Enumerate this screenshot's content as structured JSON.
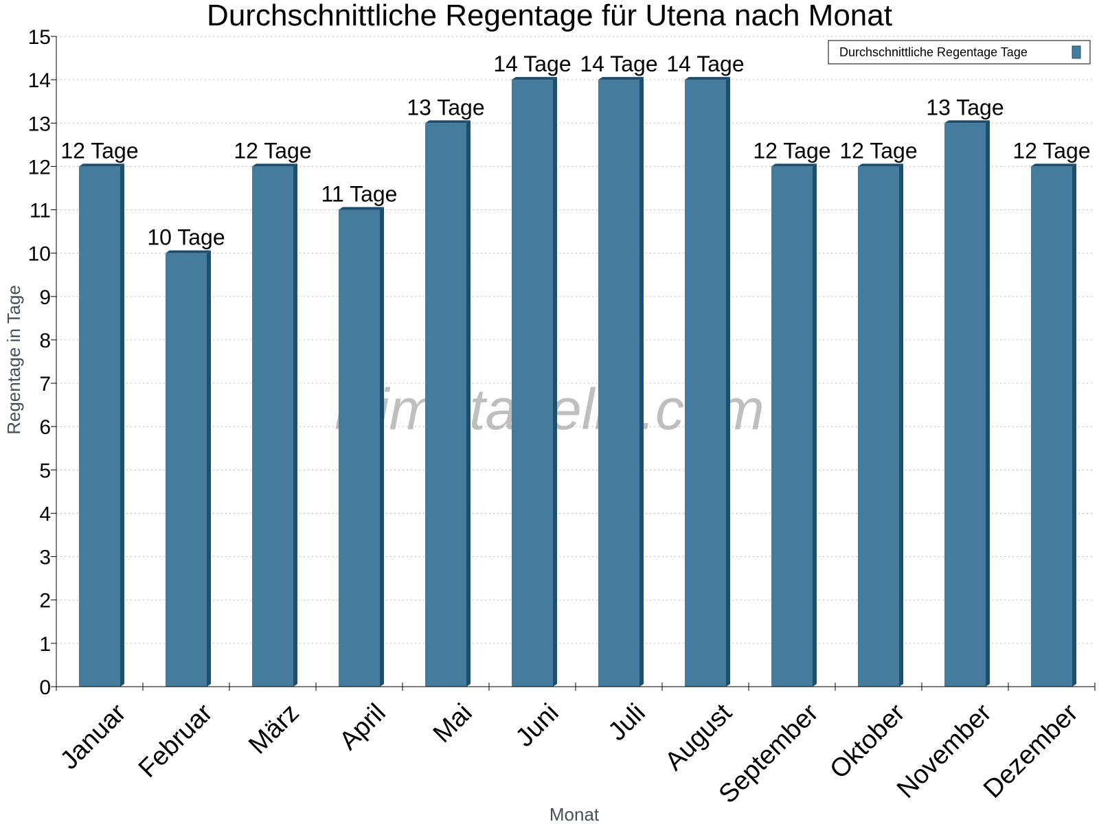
{
  "chart_data": {
    "type": "bar",
    "title": "Durchschnittliche Regentage für Utena nach Monat",
    "xlabel": "Monat",
    "ylabel": "Regentage in Tage",
    "ylim": [
      0,
      15
    ],
    "yticks": [
      0,
      1,
      2,
      3,
      4,
      5,
      6,
      7,
      8,
      9,
      10,
      11,
      12,
      13,
      14,
      15
    ],
    "grid": true,
    "legend_position": "top-right",
    "categories": [
      "Januar",
      "Februar",
      "März",
      "April",
      "Mai",
      "Juni",
      "Juli",
      "August",
      "September",
      "Oktober",
      "November",
      "Dezember"
    ],
    "series": [
      {
        "name": "Durchschnittliche Regentage Tage",
        "values": [
          12,
          10,
          12,
          11,
          13,
          14,
          14,
          14,
          12,
          12,
          13,
          12
        ],
        "labels": [
          "12 Tage",
          "10 Tage",
          "12 Tage",
          "11 Tage",
          "13 Tage",
          "14 Tage",
          "14 Tage",
          "14 Tage",
          "12 Tage",
          "12 Tage",
          "13 Tage",
          "12 Tage"
        ],
        "color": "#457b9d",
        "edge_color": "#1d4e6e"
      }
    ]
  },
  "watermark": "klimatabelle.com"
}
